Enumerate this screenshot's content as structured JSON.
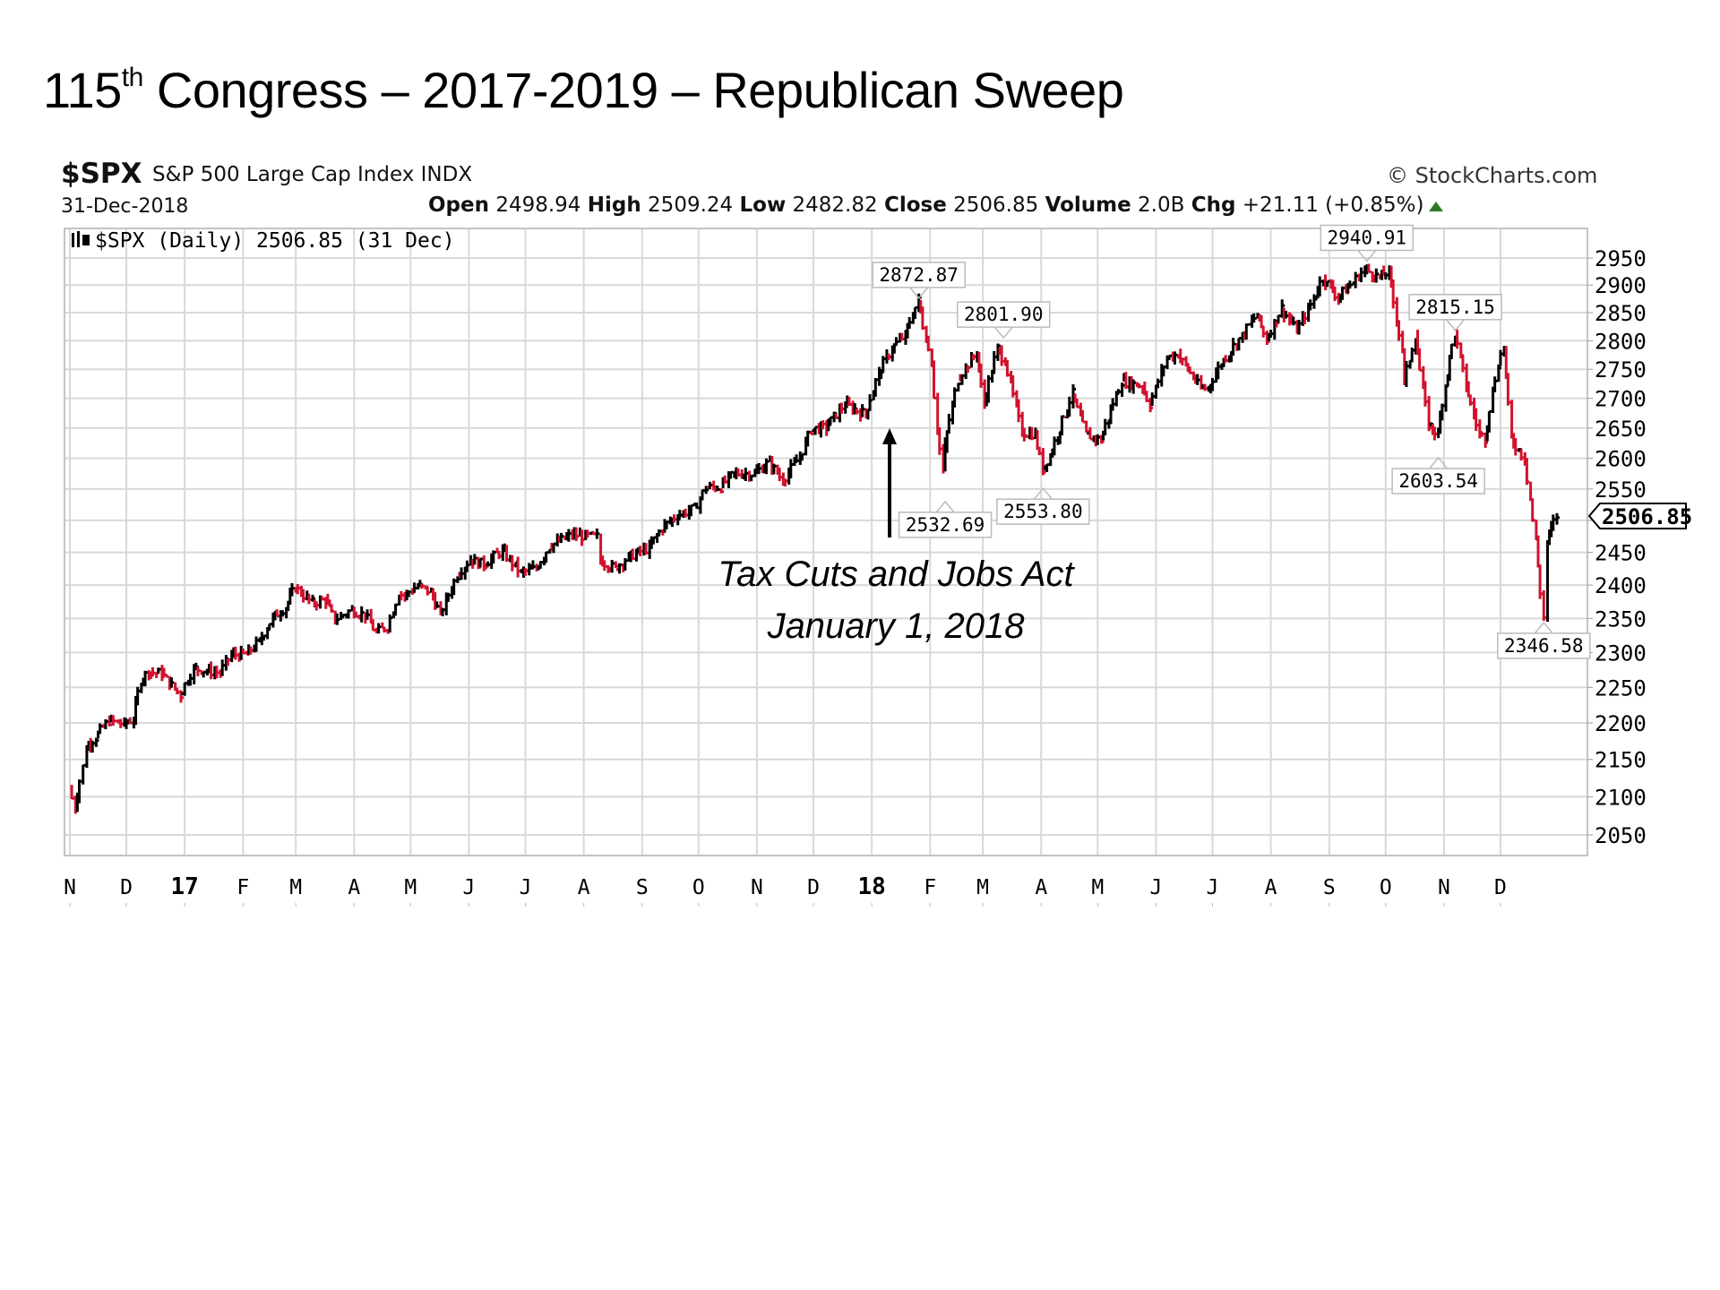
{
  "slide": {
    "title_prefix": "115",
    "title_sup": "th",
    "title_rest": " Congress – 2017-2019 – Republican Sweep"
  },
  "header": {
    "symbol": "$SPX",
    "name": "S&P 500 Large Cap Index INDX",
    "date": "31-Dec-2018",
    "copyright": "© StockCharts.com",
    "open_label": "Open",
    "open": "2498.94",
    "high_label": "High",
    "high": "2509.24",
    "low_label": "Low",
    "low": "2482.82",
    "close_label": "Close",
    "close": "2506.85",
    "volume_label": "Volume",
    "volume": "2.0B",
    "chg_label": "Chg",
    "chg": "+21.11 (+0.85%)",
    "chg_icon": "triangle-up-icon",
    "legend": "$SPX (Daily) 2506.85 (31 Dec)",
    "legend_icon": "ohlc-bars-icon"
  },
  "annotation": {
    "line1": "Tax Cuts and Jobs Act",
    "line2": "January 1, 2018",
    "arrow_icon": "arrow-up-icon"
  },
  "colors": {
    "up": "#000000",
    "down": "#d1122e",
    "grid": "#d8d8d8",
    "frame": "#c4c4c4"
  },
  "chart_data": {
    "type": "line",
    "title": "$SPX (Daily) 2506.85 (31 Dec)",
    "xlabel": "",
    "ylabel": "",
    "scale": "log",
    "ylim": [
      2030,
      2990
    ],
    "xlim": [
      "2016-11-01",
      "2018-12-31"
    ],
    "grid": true,
    "y_ticks": [
      2050,
      2100,
      2150,
      2200,
      2250,
      2300,
      2350,
      2400,
      2450,
      2500,
      2550,
      2600,
      2650,
      2700,
      2750,
      2800,
      2850,
      2900,
      2950
    ],
    "x_ticks": [
      {
        "label": "N",
        "date": "2016-11-01",
        "bold": false
      },
      {
        "label": "D",
        "date": "2016-12-01",
        "bold": false
      },
      {
        "label": "17",
        "date": "2017-01-01",
        "bold": true
      },
      {
        "label": "F",
        "date": "2017-02-01",
        "bold": false
      },
      {
        "label": "M",
        "date": "2017-03-01",
        "bold": false
      },
      {
        "label": "A",
        "date": "2017-04-01",
        "bold": false
      },
      {
        "label": "M",
        "date": "2017-05-01",
        "bold": false
      },
      {
        "label": "J",
        "date": "2017-06-01",
        "bold": false
      },
      {
        "label": "J",
        "date": "2017-07-01",
        "bold": false
      },
      {
        "label": "A",
        "date": "2017-08-01",
        "bold": false
      },
      {
        "label": "S",
        "date": "2017-09-01",
        "bold": false
      },
      {
        "label": "O",
        "date": "2017-10-01",
        "bold": false
      },
      {
        "label": "N",
        "date": "2017-11-01",
        "bold": false
      },
      {
        "label": "D",
        "date": "2017-12-01",
        "bold": false
      },
      {
        "label": "18",
        "date": "2018-01-01",
        "bold": true
      },
      {
        "label": "F",
        "date": "2018-02-01",
        "bold": false
      },
      {
        "label": "M",
        "date": "2018-03-01",
        "bold": false
      },
      {
        "label": "A",
        "date": "2018-04-01",
        "bold": false
      },
      {
        "label": "M",
        "date": "2018-05-01",
        "bold": false
      },
      {
        "label": "J",
        "date": "2018-06-01",
        "bold": false
      },
      {
        "label": "J",
        "date": "2018-07-01",
        "bold": false
      },
      {
        "label": "A",
        "date": "2018-08-01",
        "bold": false
      },
      {
        "label": "S",
        "date": "2018-09-01",
        "bold": false
      },
      {
        "label": "O",
        "date": "2018-10-01",
        "bold": false
      },
      {
        "label": "N",
        "date": "2018-11-01",
        "bold": false
      },
      {
        "label": "D",
        "date": "2018-12-01",
        "bold": false
      }
    ],
    "series": [
      {
        "name": "$SPX close (approx.)",
        "points": [
          [
            "2016-11-01",
            2111
          ],
          [
            "2016-11-04",
            2085
          ],
          [
            "2016-11-08",
            2140
          ],
          [
            "2016-11-10",
            2167
          ],
          [
            "2016-11-15",
            2180
          ],
          [
            "2016-11-22",
            2203
          ],
          [
            "2016-11-30",
            2199
          ],
          [
            "2016-12-05",
            2205
          ],
          [
            "2016-12-09",
            2260
          ],
          [
            "2016-12-13",
            2272
          ],
          [
            "2016-12-20",
            2270
          ],
          [
            "2016-12-30",
            2239
          ],
          [
            "2017-01-06",
            2277
          ],
          [
            "2017-01-13",
            2274
          ],
          [
            "2017-01-20",
            2271
          ],
          [
            "2017-01-26",
            2297
          ],
          [
            "2017-02-03",
            2297
          ],
          [
            "2017-02-10",
            2316
          ],
          [
            "2017-02-17",
            2351
          ],
          [
            "2017-02-24",
            2367
          ],
          [
            "2017-03-01",
            2396
          ],
          [
            "2017-03-10",
            2373
          ],
          [
            "2017-03-17",
            2378
          ],
          [
            "2017-03-22",
            2348
          ],
          [
            "2017-03-31",
            2363
          ],
          [
            "2017-04-07",
            2355
          ],
          [
            "2017-04-13",
            2329
          ],
          [
            "2017-04-19",
            2338
          ],
          [
            "2017-04-25",
            2388
          ],
          [
            "2017-04-28",
            2384
          ],
          [
            "2017-05-05",
            2399
          ],
          [
            "2017-05-12",
            2390
          ],
          [
            "2017-05-17",
            2357
          ],
          [
            "2017-05-26",
            2415
          ],
          [
            "2017-06-02",
            2439
          ],
          [
            "2017-06-09",
            2431
          ],
          [
            "2017-06-19",
            2453
          ],
          [
            "2017-06-29",
            2419
          ],
          [
            "2017-07-07",
            2425
          ],
          [
            "2017-07-14",
            2459
          ],
          [
            "2017-07-26",
            2477
          ],
          [
            "2017-08-08",
            2474
          ],
          [
            "2017-08-10",
            2438
          ],
          [
            "2017-08-18",
            2425
          ],
          [
            "2017-08-25",
            2443
          ],
          [
            "2017-09-05",
            2457
          ],
          [
            "2017-09-12",
            2488
          ],
          [
            "2017-09-20",
            2508
          ],
          [
            "2017-09-29",
            2519
          ],
          [
            "2017-10-05",
            2552
          ],
          [
            "2017-10-13",
            2553
          ],
          [
            "2017-10-20",
            2575
          ],
          [
            "2017-10-31",
            2575
          ],
          [
            "2017-11-08",
            2594
          ],
          [
            "2017-11-15",
            2564
          ],
          [
            "2017-11-24",
            2602
          ],
          [
            "2017-11-30",
            2647
          ],
          [
            "2017-12-08",
            2651
          ],
          [
            "2017-12-18",
            2690
          ],
          [
            "2017-12-29",
            2673
          ],
          [
            "2018-01-05",
            2743
          ],
          [
            "2018-01-12",
            2786
          ],
          [
            "2018-01-19",
            2810
          ],
          [
            "2018-01-26",
            2872
          ],
          [
            "2018-02-02",
            2762
          ],
          [
            "2018-02-05",
            2649
          ],
          [
            "2018-02-08",
            2581
          ],
          [
            "2018-02-09",
            2619
          ],
          [
            "2018-02-16",
            2732
          ],
          [
            "2018-02-26",
            2779
          ],
          [
            "2018-03-02",
            2691
          ],
          [
            "2018-03-09",
            2786
          ],
          [
            "2018-03-13",
            2765
          ],
          [
            "2018-03-22",
            2643
          ],
          [
            "2018-03-29",
            2640
          ],
          [
            "2018-04-02",
            2582
          ],
          [
            "2018-04-06",
            2604
          ],
          [
            "2018-04-18",
            2708
          ],
          [
            "2018-04-25",
            2639
          ],
          [
            "2018-05-03",
            2630
          ],
          [
            "2018-05-14",
            2730
          ],
          [
            "2018-05-25",
            2721
          ],
          [
            "2018-05-29",
            2690
          ],
          [
            "2018-06-07",
            2770
          ],
          [
            "2018-06-13",
            2776
          ],
          [
            "2018-06-25",
            2717
          ],
          [
            "2018-06-29",
            2718
          ],
          [
            "2018-07-06",
            2760
          ],
          [
            "2018-07-17",
            2809
          ],
          [
            "2018-07-25",
            2846
          ],
          [
            "2018-07-30",
            2802
          ],
          [
            "2018-08-07",
            2858
          ],
          [
            "2018-08-15",
            2818
          ],
          [
            "2018-08-24",
            2874
          ],
          [
            "2018-08-29",
            2914
          ],
          [
            "2018-09-06",
            2878
          ],
          [
            "2018-09-14",
            2905
          ],
          [
            "2018-09-20",
            2930
          ],
          [
            "2018-09-28",
            2914
          ],
          [
            "2018-10-03",
            2925
          ],
          [
            "2018-10-10",
            2785
          ],
          [
            "2018-10-11",
            2728
          ],
          [
            "2018-10-17",
            2809
          ],
          [
            "2018-10-24",
            2656
          ],
          [
            "2018-10-29",
            2641
          ],
          [
            "2018-11-02",
            2723
          ],
          [
            "2018-11-07",
            2813
          ],
          [
            "2018-11-13",
            2722
          ],
          [
            "2018-11-20",
            2641
          ],
          [
            "2018-11-23",
            2633
          ],
          [
            "2018-11-30",
            2760
          ],
          [
            "2018-12-03",
            2790
          ],
          [
            "2018-12-07",
            2633
          ],
          [
            "2018-12-14",
            2600
          ],
          [
            "2018-12-20",
            2467
          ],
          [
            "2018-12-24",
            2351
          ],
          [
            "2018-12-26",
            2467
          ],
          [
            "2018-12-31",
            2507
          ]
        ]
      }
    ],
    "annotations": [
      {
        "label": "2872.87",
        "date": "2018-01-26",
        "value": 2872.87,
        "position": "above"
      },
      {
        "label": "2532.69",
        "date": "2018-02-09",
        "value": 2532.69,
        "position": "below"
      },
      {
        "label": "2801.90",
        "date": "2018-03-12",
        "value": 2801.9,
        "position": "above"
      },
      {
        "label": "2553.80",
        "date": "2018-04-02",
        "value": 2553.8,
        "position": "below"
      },
      {
        "label": "2940.91",
        "date": "2018-09-21",
        "value": 2940.91,
        "position": "above"
      },
      {
        "label": "2603.54",
        "date": "2018-10-29",
        "value": 2603.54,
        "position": "below"
      },
      {
        "label": "2815.15",
        "date": "2018-11-07",
        "value": 2815.15,
        "position": "above"
      },
      {
        "label": "2346.58",
        "date": "2018-12-24",
        "value": 2346.58,
        "position": "below"
      }
    ],
    "last_value_label": "2506.85"
  }
}
